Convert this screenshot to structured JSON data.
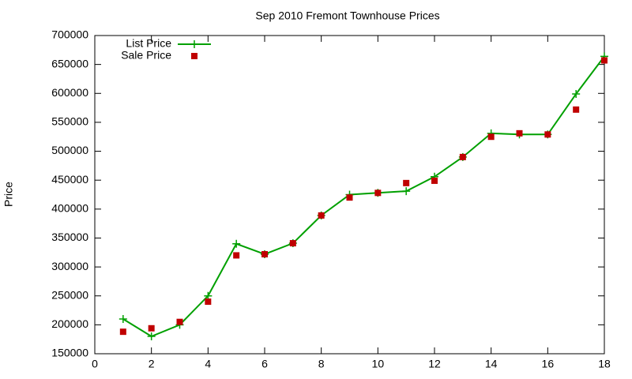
{
  "chart_data": {
    "type": "line",
    "title": "Sep 2010 Fremont Townhouse Prices",
    "y_label": "Price",
    "x": [
      1,
      2,
      3,
      4,
      5,
      6,
      7,
      8,
      9,
      10,
      11,
      12,
      13,
      14,
      15,
      16,
      17,
      18
    ],
    "series": [
      {
        "name": "List Price",
        "color": "#00a000",
        "style": "linespoints",
        "values": [
          210000,
          180000,
          200000,
          250000,
          340000,
          322000,
          341000,
          389000,
          425000,
          428000,
          431000,
          456000,
          490000,
          531000,
          529000,
          529000,
          599000,
          664000
        ]
      },
      {
        "name": "Sale Price",
        "color": "#c00000",
        "style": "points",
        "values": [
          188000,
          194000,
          205000,
          240000,
          320000,
          322000,
          341000,
          389000,
          420000,
          428000,
          445000,
          449000,
          490000,
          525000,
          531000,
          529000,
          572000,
          657000
        ]
      }
    ],
    "xlim": [
      0,
      18
    ],
    "xticks": [
      0,
      2,
      4,
      6,
      8,
      10,
      12,
      14,
      16,
      18
    ],
    "ylim": [
      150000,
      700000
    ],
    "yticks": [
      150000,
      200000,
      250000,
      300000,
      350000,
      400000,
      450000,
      500000,
      550000,
      600000,
      650000,
      700000
    ],
    "grid": false,
    "legend": "top-left"
  }
}
